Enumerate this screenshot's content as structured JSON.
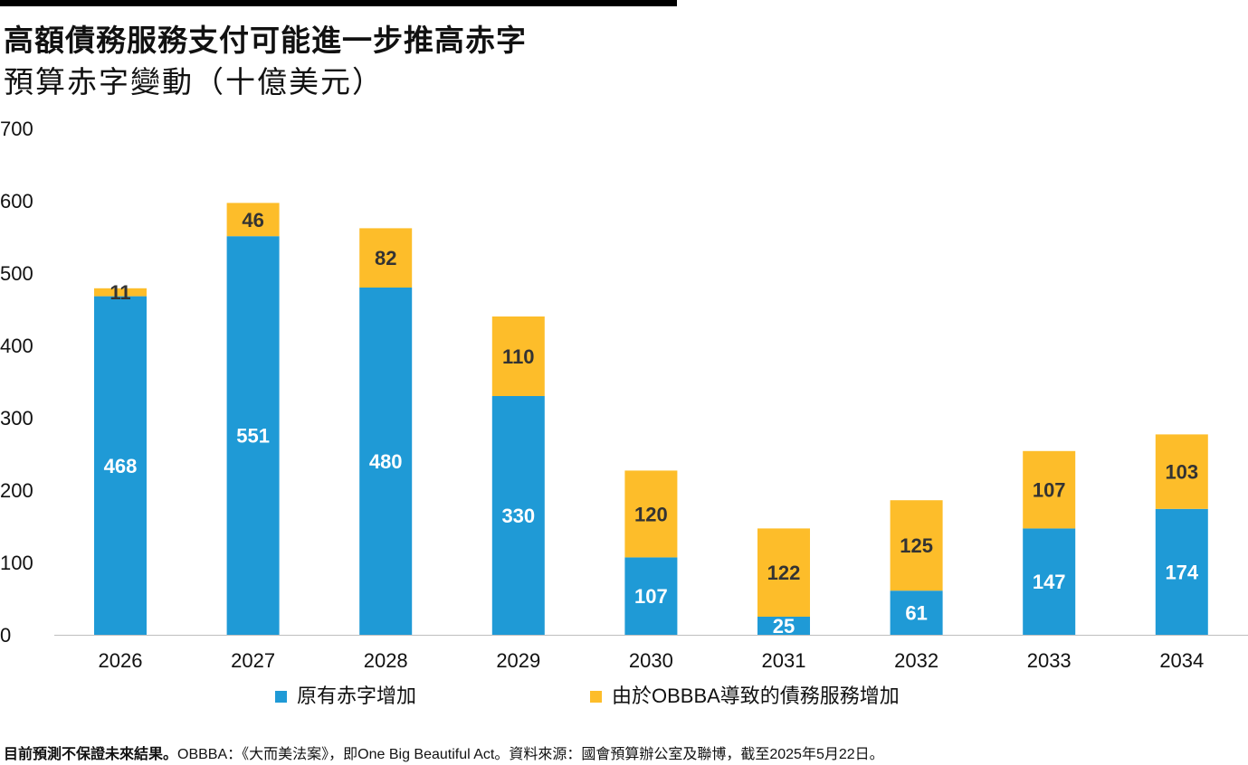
{
  "header": {
    "title": "高額債務服務支付可能進一步推高赤字",
    "subtitle": "預算赤字變動（十億美元）"
  },
  "footnote": {
    "bold": "目前預測不保證未來結果。",
    "text": "OBBBA：《大而美法案》，即One Big Beautiful Act。資料來源：國會預算辦公室及聯博，截至2025年5月22日。"
  },
  "colors": {
    "original": "#1f9ad6",
    "debt_service": "#fdbd2a"
  },
  "chart_data": {
    "type": "bar",
    "stacked": true,
    "categories": [
      "2026",
      "2027",
      "2028",
      "2029",
      "2030",
      "2031",
      "2032",
      "2033",
      "2034"
    ],
    "series": [
      {
        "name": "原有赤字增加",
        "values": [
          468,
          551,
          480,
          330,
          107,
          25,
          61,
          147,
          174
        ]
      },
      {
        "name": "由於OBBBA導致的債務服務增加",
        "values": [
          11,
          46,
          82,
          110,
          120,
          122,
          125,
          107,
          103
        ]
      }
    ],
    "ylim": [
      0,
      700
    ],
    "yticks": [
      0,
      100,
      200,
      300,
      400,
      500,
      600,
      700
    ],
    "grid": false,
    "legend": "bottom",
    "data_labels": true
  }
}
